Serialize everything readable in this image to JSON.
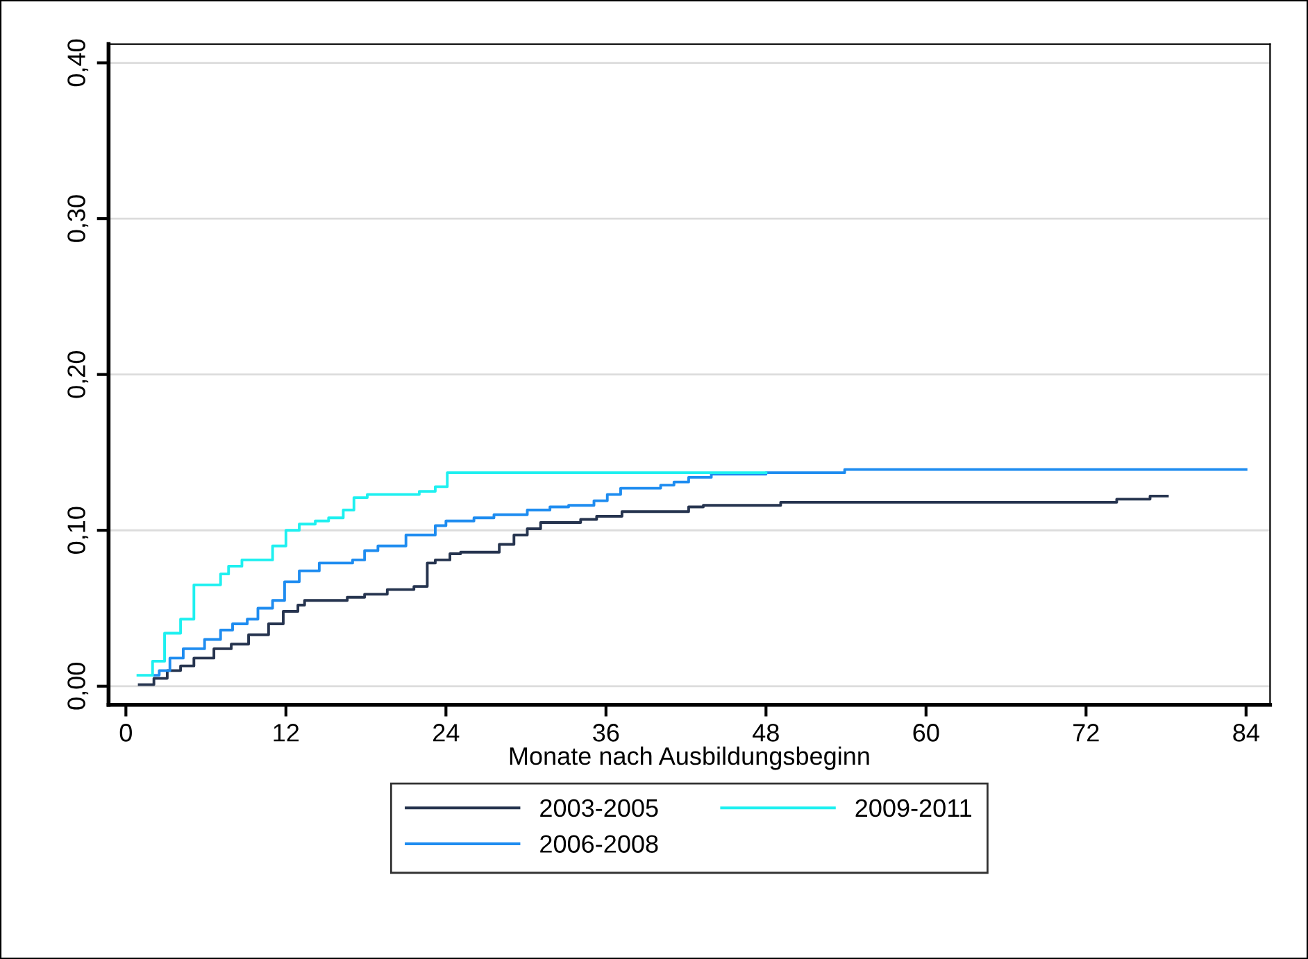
{
  "chart_data": {
    "type": "step",
    "xlabel": "Monate nach Ausbildungsbeginn",
    "xlim": [
      -1.3,
      85.8
    ],
    "ylim": [
      -0.012,
      0.412
    ],
    "xticks": [
      0,
      12,
      24,
      36,
      48,
      60,
      72,
      84
    ],
    "yticks": [
      {
        "value": 0,
        "label": "0,00"
      },
      {
        "value": 0.1,
        "label": "0,10"
      },
      {
        "value": 0.2,
        "label": "0,20"
      },
      {
        "value": 0.3,
        "label": "0,30"
      },
      {
        "value": 0.4,
        "label": "0,40"
      }
    ],
    "grid": "y",
    "legend": "bottom",
    "marker": "none",
    "line_style": "solid",
    "series": [
      {
        "name": "2003-2005",
        "color": "#26344f",
        "x": [
          1.0,
          2.1,
          3.1,
          4.1,
          5.1,
          6.6,
          7.9,
          9.2,
          10.7,
          11.8,
          12.9,
          13.4,
          16.6,
          17.9,
          19.6,
          21.6,
          22.6,
          23.2,
          24.3,
          25.1,
          28.0,
          29.1,
          30.1,
          31.1,
          34.1,
          35.3,
          37.2,
          42.2,
          43.3,
          49.1,
          74.3,
          76.8,
          78.1
        ],
        "values": [
          0.001,
          0.005,
          0.01,
          0.013,
          0.018,
          0.024,
          0.027,
          0.033,
          0.04,
          0.048,
          0.052,
          0.055,
          0.057,
          0.059,
          0.062,
          0.064,
          0.079,
          0.081,
          0.085,
          0.086,
          0.091,
          0.097,
          0.101,
          0.105,
          0.107,
          0.109,
          0.112,
          0.115,
          0.116,
          0.118,
          0.12,
          0.122,
          0.122
        ]
      },
      {
        "name": "2006-2008",
        "color": "#1e8cf0",
        "x": [
          2.0,
          2.5,
          3.3,
          4.3,
          5.9,
          7.1,
          8.0,
          9.1,
          9.9,
          11.0,
          11.9,
          13.0,
          14.5,
          17.0,
          17.9,
          18.9,
          21.0,
          23.2,
          24.0,
          26.1,
          27.6,
          30.1,
          31.8,
          33.2,
          35.1,
          36.1,
          37.1,
          40.1,
          41.1,
          42.2,
          43.9,
          48.0,
          53.9,
          84.0
        ],
        "values": [
          0.007,
          0.01,
          0.018,
          0.024,
          0.03,
          0.036,
          0.04,
          0.043,
          0.05,
          0.055,
          0.067,
          0.074,
          0.079,
          0.081,
          0.087,
          0.09,
          0.097,
          0.103,
          0.106,
          0.108,
          0.11,
          0.113,
          0.115,
          0.116,
          0.119,
          0.123,
          0.127,
          0.129,
          0.131,
          0.134,
          0.136,
          0.137,
          0.139,
          0.139
        ]
      },
      {
        "name": "2009-2011",
        "color": "#1ef0f0",
        "x": [
          0.9,
          2.0,
          2.9,
          4.1,
          5.1,
          7.1,
          7.7,
          8.7,
          11.0,
          12.0,
          13.0,
          14.2,
          15.2,
          16.3,
          17.1,
          18.1,
          22.0,
          23.2,
          24.1,
          48.0
        ],
        "values": [
          0.007,
          0.016,
          0.034,
          0.043,
          0.065,
          0.072,
          0.077,
          0.081,
          0.09,
          0.1,
          0.104,
          0.106,
          0.108,
          0.113,
          0.121,
          0.123,
          0.125,
          0.128,
          0.137,
          0.137
        ]
      }
    ]
  }
}
